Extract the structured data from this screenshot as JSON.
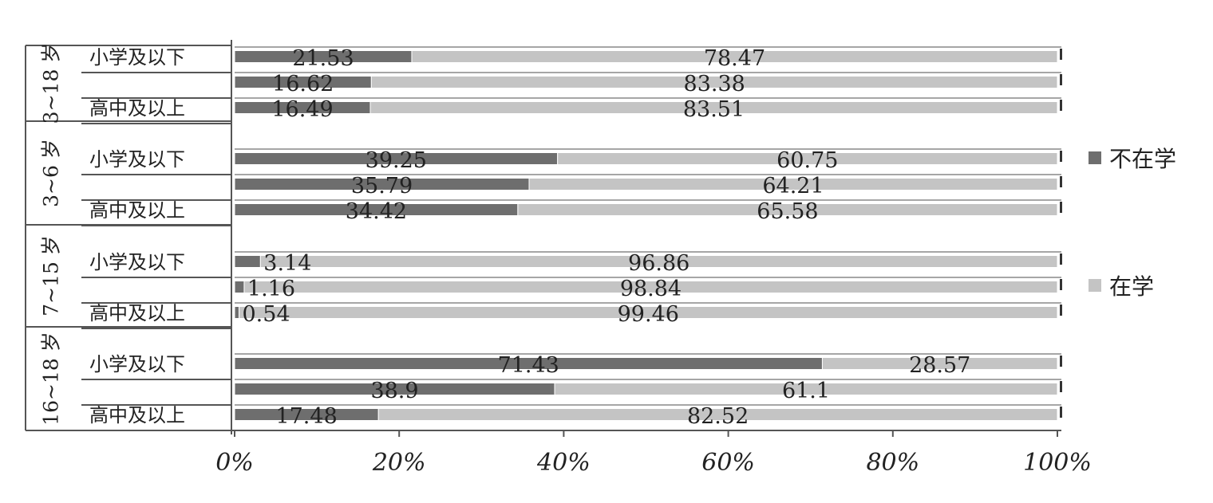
{
  "chart_data": {
    "type": "bar",
    "stacked": true,
    "orientation": "horizontal",
    "groups": [
      {
        "label": "3~18 岁",
        "rows": [
          {
            "category": "小学及以下",
            "values": [
              21.53,
              78.47
            ]
          },
          {
            "category": "",
            "values": [
              16.62,
              83.38
            ]
          },
          {
            "category": "高中及以上",
            "values": [
              16.49,
              83.51
            ]
          }
        ]
      },
      {
        "label": "3~6 岁",
        "rows": [
          {
            "category": "小学及以下",
            "values": [
              39.25,
              60.75
            ]
          },
          {
            "category": "",
            "values": [
              35.79,
              64.21
            ]
          },
          {
            "category": "高中及以上",
            "values": [
              34.42,
              65.58
            ]
          }
        ]
      },
      {
        "label": "7~15 岁",
        "rows": [
          {
            "category": "小学及以下",
            "values": [
              3.14,
              96.86
            ]
          },
          {
            "category": "",
            "values": [
              1.16,
              98.84
            ]
          },
          {
            "category": "高中及以上",
            "values": [
              0.54,
              99.46
            ]
          }
        ]
      },
      {
        "label": "16~18 岁",
        "rows": [
          {
            "category": "小学及以下",
            "values": [
              71.43,
              28.57
            ]
          },
          {
            "category": "",
            "values": [
              38.9,
              61.1
            ]
          },
          {
            "category": "高中及以上",
            "values": [
              17.48,
              82.52
            ]
          }
        ]
      }
    ],
    "series": [
      {
        "name": "不在学",
        "color": "#6e6e6e"
      },
      {
        "name": "在学",
        "color": "#c4c4c4"
      }
    ],
    "x_ticks": [
      "0%",
      "20%",
      "40%",
      "60%",
      "80%",
      "100%"
    ],
    "xlim": [
      0,
      100
    ],
    "legend_position": "right"
  }
}
